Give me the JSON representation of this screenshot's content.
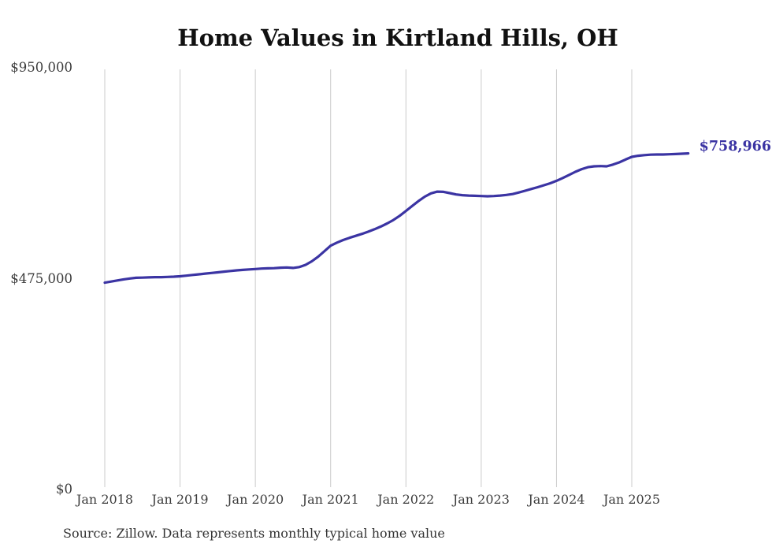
{
  "chart_data": {
    "type": "line",
    "title": "Home Values in Kirtland Hills, OH",
    "source_note": "Source: Zillow. Data represents monthly typical home value",
    "series_name": "Monthly typical home value",
    "end_label": "$758,966",
    "y_ticks": [
      "$0",
      "$475,000",
      "$950,000"
    ],
    "x_ticks": [
      "Jan 2018",
      "Jan 2019",
      "Jan 2020",
      "Jan 2021",
      "Jan 2022",
      "Jan 2023",
      "Jan 2024",
      "Jan 2025"
    ],
    "ylim": [
      0,
      950000
    ],
    "grid": "vertical-only",
    "legend": "none",
    "colors": {
      "line": "#3B34A3",
      "grid": "#CBCBCB",
      "title": "#111111",
      "tick": "#3C3C3C",
      "source": "#333333",
      "background": "#FFFFFF"
    },
    "x": [
      "2018-01",
      "2018-02",
      "2018-03",
      "2018-04",
      "2018-05",
      "2018-06",
      "2018-07",
      "2018-08",
      "2018-09",
      "2018-10",
      "2018-11",
      "2018-12",
      "2019-01",
      "2019-02",
      "2019-03",
      "2019-04",
      "2019-05",
      "2019-06",
      "2019-07",
      "2019-08",
      "2019-09",
      "2019-10",
      "2019-11",
      "2019-12",
      "2020-01",
      "2020-02",
      "2020-03",
      "2020-04",
      "2020-05",
      "2020-06",
      "2020-07",
      "2020-08",
      "2020-09",
      "2020-10",
      "2020-11",
      "2020-12",
      "2021-01",
      "2021-02",
      "2021-03",
      "2021-04",
      "2021-05",
      "2021-06",
      "2021-07",
      "2021-08",
      "2021-09",
      "2021-10",
      "2021-11",
      "2021-12",
      "2022-01",
      "2022-02",
      "2022-03",
      "2022-04",
      "2022-05",
      "2022-06",
      "2022-07",
      "2022-08",
      "2022-09",
      "2022-10",
      "2022-11",
      "2022-12",
      "2023-01",
      "2023-02",
      "2023-03",
      "2023-04",
      "2023-05",
      "2023-06",
      "2023-07",
      "2023-08",
      "2023-09",
      "2023-10",
      "2023-11",
      "2023-12",
      "2024-01",
      "2024-02",
      "2024-03",
      "2024-04",
      "2024-05",
      "2024-06",
      "2024-07",
      "2024-08",
      "2024-09",
      "2024-10",
      "2024-11",
      "2024-12",
      "2025-01",
      "2025-02",
      "2025-03",
      "2025-04",
      "2025-05",
      "2025-06",
      "2025-07",
      "2025-08",
      "2025-09",
      "2025-10"
    ],
    "values": [
      465000,
      467500,
      470000,
      472500,
      474500,
      476000,
      476500,
      477000,
      477500,
      477500,
      478000,
      478500,
      479500,
      481000,
      482500,
      484000,
      485500,
      487000,
      488500,
      490000,
      491500,
      493000,
      494000,
      495000,
      496000,
      497000,
      497500,
      498000,
      499000,
      499500,
      498500,
      500500,
      505500,
      513500,
      524000,
      536500,
      549000,
      556000,
      562000,
      567000,
      571500,
      576000,
      581000,
      586500,
      592500,
      599500,
      607500,
      617000,
      628000,
      639500,
      650500,
      660500,
      668000,
      672000,
      671500,
      668500,
      665500,
      664000,
      663000,
      662500,
      662000,
      661500,
      662000,
      663000,
      664500,
      666500,
      670000,
      674000,
      678000,
      682000,
      686500,
      691000,
      696500,
      703000,
      710000,
      717000,
      723000,
      727500,
      729500,
      730000,
      729500,
      733500,
      738500,
      745000,
      751000,
      753500,
      755000,
      756000,
      756500,
      756500,
      757000,
      757500,
      758200,
      758966
    ]
  }
}
